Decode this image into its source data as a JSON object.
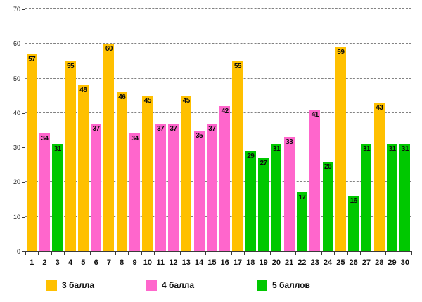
{
  "chart_data": {
    "type": "bar",
    "title": "",
    "xlabel": "",
    "ylabel": "",
    "ylim": [
      0,
      70
    ],
    "yticks": [
      0,
      10,
      20,
      30,
      40,
      50,
      60,
      70
    ],
    "grid": "horizontal-dashed",
    "gridline_color": "#828282",
    "legend_position": "bottom",
    "categories": [
      "1",
      "2",
      "3",
      "4",
      "5",
      "6",
      "7",
      "8",
      "9",
      "10",
      "11",
      "12",
      "13",
      "14",
      "15",
      "16",
      "17",
      "18",
      "19",
      "20",
      "21",
      "22",
      "23",
      "24",
      "25",
      "26",
      "27",
      "28",
      "29",
      "30"
    ],
    "series_colors": {
      "3 балла": "#FFC000",
      "4 балла": "#FF66CC",
      "5 баллов": "#00C800"
    },
    "bars": [
      {
        "category": "1",
        "value": 57,
        "series": "3 балла"
      },
      {
        "category": "2",
        "value": 34,
        "series": "4 балла"
      },
      {
        "category": "3",
        "value": 31,
        "series": "5 баллов"
      },
      {
        "category": "4",
        "value": 55,
        "series": "3 балла"
      },
      {
        "category": "5",
        "value": 48,
        "series": "3 балла"
      },
      {
        "category": "6",
        "value": 37,
        "series": "4 балла"
      },
      {
        "category": "7",
        "value": 60,
        "series": "3 балла"
      },
      {
        "category": "8",
        "value": 46,
        "series": "3 балла"
      },
      {
        "category": "9",
        "value": 34,
        "series": "4 балла"
      },
      {
        "category": "10",
        "value": 45,
        "series": "3 балла"
      },
      {
        "category": "11",
        "value": 37,
        "series": "4 балла"
      },
      {
        "category": "12",
        "value": 37,
        "series": "4 балла"
      },
      {
        "category": "13",
        "value": 45,
        "series": "3 балла"
      },
      {
        "category": "14",
        "value": 35,
        "series": "4 балла"
      },
      {
        "category": "15",
        "value": 37,
        "series": "4 балла"
      },
      {
        "category": "16",
        "value": 42,
        "series": "4 балла"
      },
      {
        "category": "17",
        "value": 55,
        "series": "3 балла"
      },
      {
        "category": "18",
        "value": 29,
        "series": "5 баллов"
      },
      {
        "category": "19",
        "value": 27,
        "series": "5 баллов"
      },
      {
        "category": "20",
        "value": 31,
        "series": "5 баллов"
      },
      {
        "category": "21",
        "value": 33,
        "series": "4 балла"
      },
      {
        "category": "22",
        "value": 17,
        "series": "5 баллов"
      },
      {
        "category": "23",
        "value": 41,
        "series": "4 балла"
      },
      {
        "category": "24",
        "value": 26,
        "series": "5 баллов"
      },
      {
        "category": "25",
        "value": 59,
        "series": "3 балла"
      },
      {
        "category": "26",
        "value": 16,
        "series": "5 баллов"
      },
      {
        "category": "27",
        "value": 31,
        "series": "5 баллов"
      },
      {
        "category": "28",
        "value": 43,
        "series": "3 балла"
      },
      {
        "category": "29",
        "value": 31,
        "series": "5 баллов"
      },
      {
        "category": "30",
        "value": 31,
        "series": "5 баллов"
      }
    ]
  },
  "legend": {
    "items": [
      {
        "label": "3 балла",
        "color": "#FFC000"
      },
      {
        "label": "4 балла",
        "color": "#FF66CC"
      },
      {
        "label": "5 баллов",
        "color": "#00C800"
      }
    ]
  }
}
